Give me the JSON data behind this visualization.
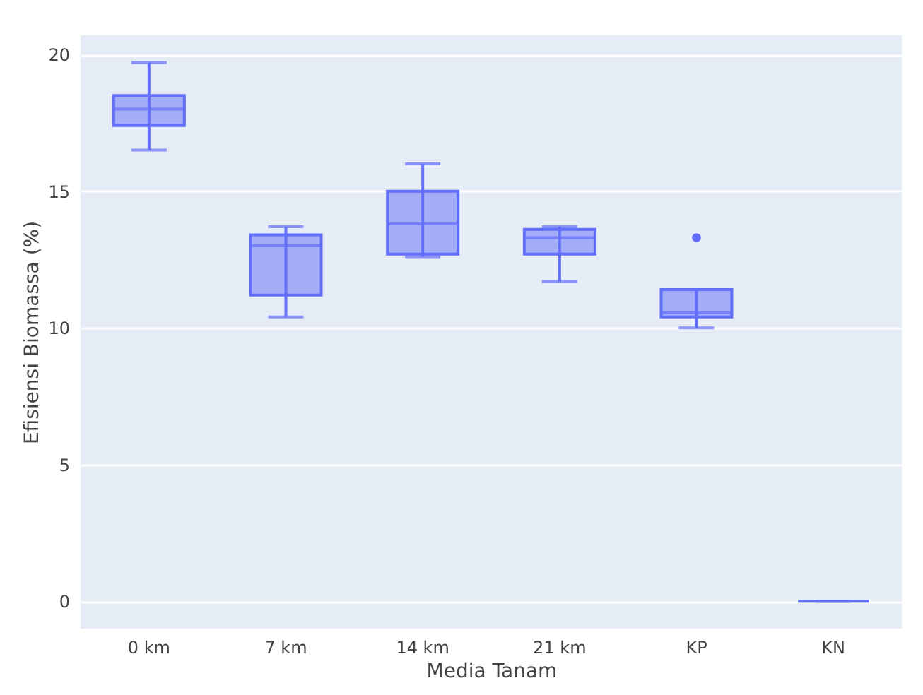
{
  "chart_data": {
    "type": "box",
    "xlabel": "Media Tanam",
    "ylabel": "Efisiensi Biomassa (%)",
    "categories": [
      "0 km",
      "7 km",
      "14 km",
      "21 km",
      "KP",
      "KN"
    ],
    "color": "#636efa",
    "boxes": [
      {
        "low": 16.5,
        "q1": 17.4,
        "median": 18.0,
        "q3": 18.5,
        "high": 19.7
      },
      {
        "low": 10.4,
        "q1": 11.2,
        "median": 13.0,
        "q3": 13.4,
        "high": 13.7
      },
      {
        "low": 12.6,
        "q1": 12.7,
        "median": 13.8,
        "q3": 15.0,
        "high": 16.0
      },
      {
        "low": 11.7,
        "q1": 12.7,
        "median": 13.3,
        "q3": 13.6,
        "high": 13.7
      },
      {
        "low": 10.0,
        "q1": 10.4,
        "median": 10.55,
        "q3": 11.4,
        "high": 11.4,
        "outliers": [
          13.3
        ]
      },
      {
        "low": 0,
        "q1": 0,
        "median": 0,
        "q3": 0,
        "high": 0
      }
    ],
    "ylim": [
      -1,
      20.7
    ],
    "yticks": [
      0,
      5,
      10,
      15,
      20
    ],
    "grid": "y"
  }
}
